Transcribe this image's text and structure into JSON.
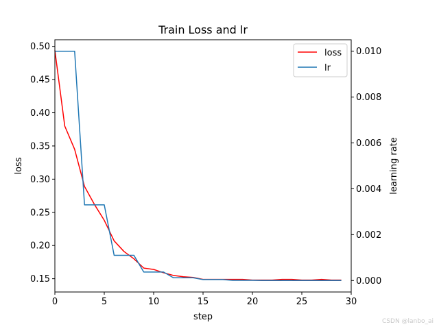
{
  "chart_data": {
    "type": "line",
    "title": "Train Loss and lr",
    "xlabel": "step",
    "ylabel": "loss",
    "y2label": "learning rate",
    "xlim": [
      0,
      30
    ],
    "ylim": [
      0.13,
      0.51
    ],
    "y2lim": [
      -0.0005,
      0.0105
    ],
    "xticks": [
      "0",
      "5",
      "10",
      "15",
      "20",
      "25",
      "30"
    ],
    "yticks": [
      "0.15",
      "0.20",
      "0.25",
      "0.30",
      "0.35",
      "0.40",
      "0.45",
      "0.50"
    ],
    "y2ticks": [
      "0.000",
      "0.002",
      "0.004",
      "0.006",
      "0.008",
      "0.010"
    ],
    "grid": false,
    "legend_position": "top-right",
    "series": [
      {
        "name": "loss",
        "axis": "left",
        "color": "#ff0000",
        "x": [
          0,
          1,
          2,
          3,
          4,
          5,
          6,
          7,
          8,
          9,
          10,
          11,
          12,
          13,
          14,
          15,
          16,
          17,
          18,
          19,
          20,
          21,
          22,
          23,
          24,
          25,
          26,
          27,
          28,
          29
        ],
        "values": [
          0.494,
          0.38,
          0.345,
          0.289,
          0.262,
          0.238,
          0.207,
          0.191,
          0.18,
          0.166,
          0.164,
          0.159,
          0.155,
          0.153,
          0.152,
          0.149,
          0.149,
          0.149,
          0.149,
          0.149,
          0.148,
          0.148,
          0.148,
          0.149,
          0.149,
          0.148,
          0.148,
          0.149,
          0.148,
          0.148
        ]
      },
      {
        "name": "lr",
        "axis": "right",
        "color": "#1f77b4",
        "x": [
          0,
          1,
          2,
          3,
          4,
          5,
          6,
          7,
          8,
          9,
          10,
          11,
          12,
          13,
          14,
          15,
          16,
          17,
          18,
          19,
          20,
          21,
          22,
          23,
          24,
          25,
          26,
          27,
          28,
          29
        ],
        "values": [
          0.01,
          0.01,
          0.01,
          0.0033,
          0.0033,
          0.0033,
          0.0011,
          0.0011,
          0.0011,
          0.00037,
          0.00037,
          0.00037,
          0.00012,
          0.00012,
          0.00012,
          4e-05,
          4e-05,
          4e-05,
          1e-05,
          1e-05,
          1e-05,
          0.0,
          0.0,
          0.0,
          0.0,
          0.0,
          0.0,
          0.0,
          0.0,
          0.0
        ]
      }
    ]
  },
  "watermark": "CSDN @lanbo_ai"
}
